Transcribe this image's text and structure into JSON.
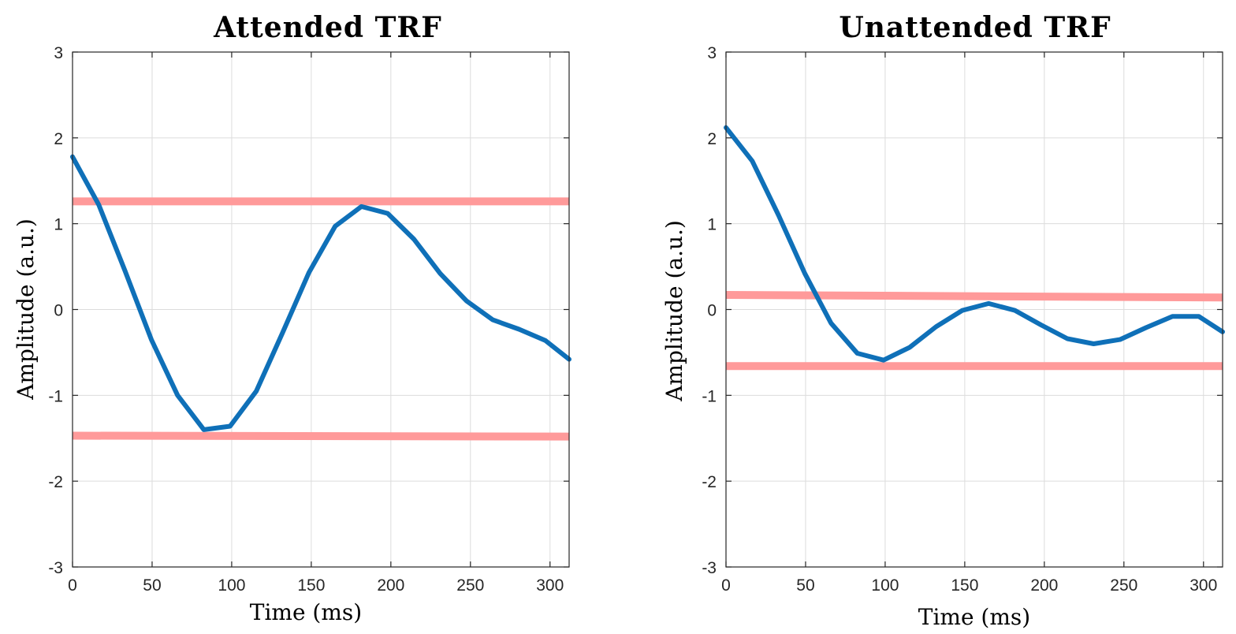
{
  "colors": {
    "series": "#0f70b8",
    "threshold": "#ff9a9a",
    "axis": "#262626",
    "grid": "#dcdcdc"
  },
  "chart_data": [
    {
      "type": "line",
      "title": "Attended TRF",
      "xlabel": "Time (ms)",
      "ylabel": "Amplitude (a.u.)",
      "xlim": [
        0,
        312
      ],
      "ylim": [
        -3,
        3
      ],
      "xticks": [
        0,
        50,
        100,
        150,
        200,
        250,
        300
      ],
      "yticks": [
        -3,
        -2,
        -1,
        0,
        1,
        2,
        3
      ],
      "grid": true,
      "series": [
        {
          "x": [
            0,
            16.5,
            33,
            49.5,
            66,
            82.5,
            99,
            115.5,
            132,
            148.5,
            165,
            181.5,
            198,
            214.5,
            231,
            247.5,
            264,
            280.5,
            297,
            312
          ],
          "y": [
            1.78,
            1.22,
            0.45,
            -0.35,
            -1.0,
            -1.4,
            -1.36,
            -0.95,
            -0.27,
            0.43,
            0.97,
            1.2,
            1.12,
            0.82,
            0.42,
            0.1,
            -0.12,
            -0.23,
            -0.36,
            -0.58
          ]
        }
      ],
      "thresholds": [
        {
          "x": [
            0,
            312
          ],
          "y": [
            1.26,
            1.26
          ]
        },
        {
          "x": [
            0,
            312
          ],
          "y": [
            -1.47,
            -1.48
          ]
        }
      ]
    },
    {
      "type": "line",
      "title": "Unattended TRF",
      "xlabel": "Time (ms)",
      "ylabel": "Amplitude (a.u.)",
      "xlim": [
        0,
        312
      ],
      "ylim": [
        -3,
        3
      ],
      "xticks": [
        0,
        50,
        100,
        150,
        200,
        250,
        300
      ],
      "yticks": [
        -3,
        -2,
        -1,
        0,
        1,
        2,
        3
      ],
      "grid": true,
      "series": [
        {
          "x": [
            0,
            16.5,
            33,
            49.5,
            66,
            82.5,
            99,
            115.5,
            132,
            148.5,
            165,
            181.5,
            198,
            214.5,
            231,
            247.5,
            264,
            280.5,
            297,
            312
          ],
          "y": [
            2.12,
            1.73,
            1.1,
            0.42,
            -0.16,
            -0.51,
            -0.59,
            -0.44,
            -0.2,
            -0.01,
            0.07,
            -0.01,
            -0.18,
            -0.34,
            -0.4,
            -0.35,
            -0.21,
            -0.08,
            -0.08,
            -0.26
          ]
        }
      ],
      "thresholds": [
        {
          "x": [
            0,
            312
          ],
          "y": [
            0.17,
            0.14
          ]
        },
        {
          "x": [
            0,
            312
          ],
          "y": [
            -0.66,
            -0.66
          ]
        }
      ]
    }
  ]
}
